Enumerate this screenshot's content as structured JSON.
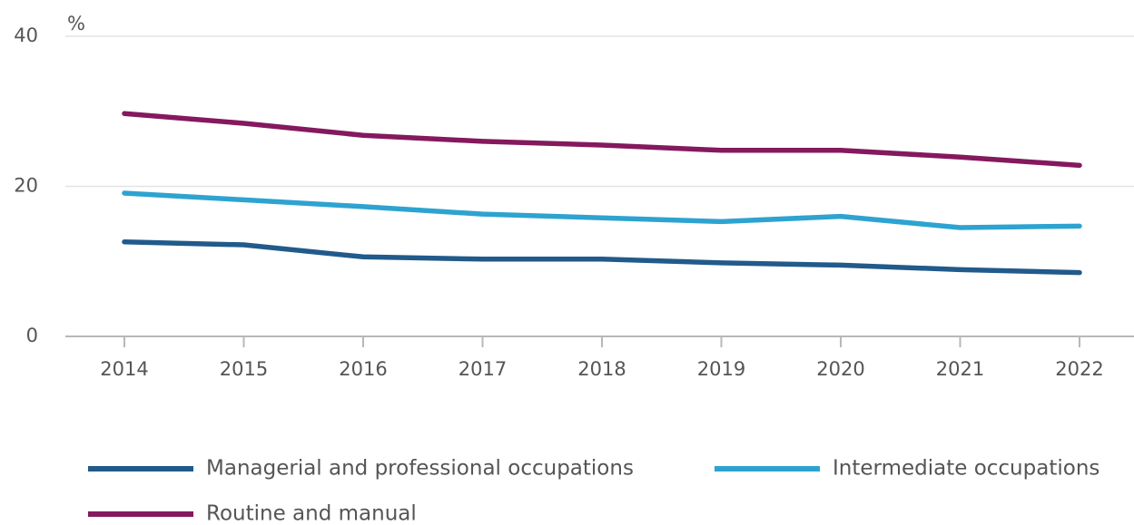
{
  "chart_data": {
    "type": "line",
    "unit_label": "%",
    "categories": [
      "2014",
      "2015",
      "2016",
      "2017",
      "2018",
      "2019",
      "2020",
      "2021",
      "2022"
    ],
    "series": [
      {
        "name": "Managerial and professional occupations",
        "color": "#215a8b",
        "values": [
          12.6,
          12.2,
          10.6,
          10.3,
          10.3,
          9.8,
          9.5,
          8.9,
          8.5
        ]
      },
      {
        "name": "Intermediate occupations",
        "color": "#2ea3d0",
        "values": [
          19.1,
          18.2,
          17.3,
          16.3,
          15.8,
          15.3,
          16.0,
          14.5,
          14.7
        ]
      },
      {
        "name": "Routine and manual",
        "color": "#84195e",
        "values": [
          29.7,
          28.4,
          26.8,
          26.0,
          25.5,
          24.8,
          24.8,
          23.9,
          22.8
        ]
      }
    ],
    "ylim": [
      0,
      40
    ],
    "yticks": [
      0,
      20,
      40
    ],
    "grid": true,
    "legend": "bottom"
  }
}
